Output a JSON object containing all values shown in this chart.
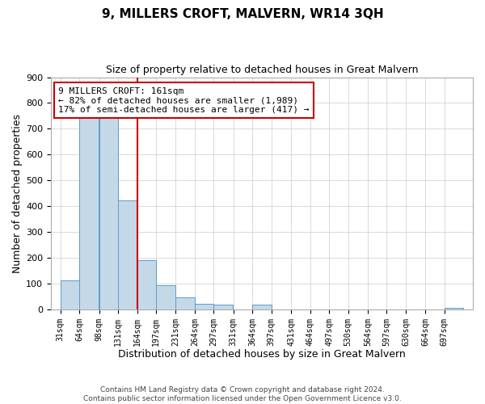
{
  "title": "9, MILLERS CROFT, MALVERN, WR14 3QH",
  "subtitle": "Size of property relative to detached houses in Great Malvern",
  "xlabel": "Distribution of detached houses by size in Great Malvern",
  "ylabel": "Number of detached properties",
  "footer_line1": "Contains HM Land Registry data © Crown copyright and database right 2024.",
  "footer_line2": "Contains public sector information licensed under the Open Government Licence v3.0.",
  "property_label": "9 MILLERS CROFT: 161sqm",
  "annotation_line1": "← 82% of detached houses are smaller (1,989)",
  "annotation_line2": "17% of semi-detached houses are larger (417) →",
  "bar_edges": [
    31,
    64,
    98,
    131,
    164,
    197,
    231,
    264,
    297,
    331,
    364,
    397,
    431,
    464,
    497,
    530,
    564,
    597,
    630,
    664,
    697
  ],
  "bar_heights": [
    113,
    746,
    751,
    422,
    192,
    94,
    47,
    22,
    18,
    0,
    17,
    0,
    0,
    0,
    0,
    0,
    0,
    0,
    0,
    0,
    5
  ],
  "bar_color": "#c5d8e8",
  "bar_edge_color": "#5b9ec9",
  "vline_x": 164,
  "vline_color": "#cc0000",
  "box_color": "#cc0000",
  "ylim": [
    0,
    900
  ],
  "yticks": [
    0,
    100,
    200,
    300,
    400,
    500,
    600,
    700,
    800,
    900
  ],
  "bg_color": "#ffffff",
  "grid_color": "#cccccc",
  "title_fontsize": 11,
  "subtitle_fontsize": 9,
  "xlabel_fontsize": 9,
  "ylabel_fontsize": 9,
  "tick_fontsize": 7,
  "ytick_fontsize": 8,
  "footer_fontsize": 6.5,
  "ann_fontsize": 8
}
